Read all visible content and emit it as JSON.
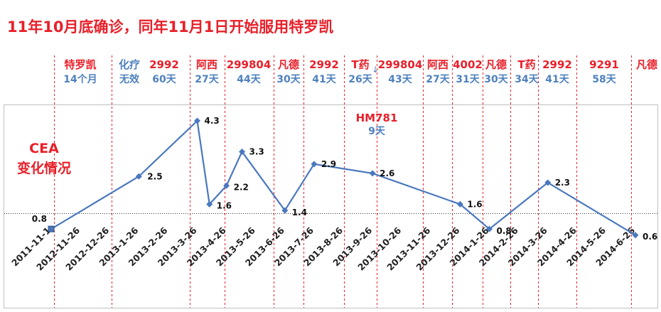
{
  "title": "11年10月底确诊，同年11月1日开始服用特罗凯",
  "side_label": [
    "CEA",
    "变化情况"
  ],
  "colors": {
    "title": "#e8202a",
    "red": "#e8202a",
    "blue": "#4f81bd",
    "line": "#4a78be"
  },
  "treatments": [
    {
      "drug": "特罗凯",
      "duration": "14个月",
      "drug_color": "red"
    },
    {
      "drug": "化疗",
      "duration": "无效",
      "drug_color": "blue"
    },
    {
      "drug": "2992",
      "duration": "60天",
      "drug_color": "red"
    },
    {
      "drug": "阿西",
      "duration": "27天",
      "drug_color": "red"
    },
    {
      "drug": "299804",
      "duration": "44天",
      "drug_color": "red"
    },
    {
      "drug": "凡德",
      "duration": "30天",
      "drug_color": "red"
    },
    {
      "drug": "2992",
      "duration": "41天",
      "drug_color": "red"
    },
    {
      "drug": "T药",
      "duration": "26天",
      "drug_color": "red"
    },
    {
      "drug": "299804",
      "duration": "43天",
      "drug_color": "red"
    },
    {
      "drug": "阿西",
      "duration": "27天",
      "drug_color": "red"
    },
    {
      "drug": "4002",
      "duration": "31天",
      "drug_color": "red"
    },
    {
      "drug": "凡德",
      "duration": "30天",
      "drug_color": "red"
    },
    {
      "drug": "T药",
      "duration": "34天",
      "drug_color": "red"
    },
    {
      "drug": "2992",
      "duration": "41天",
      "drug_color": "red"
    },
    {
      "drug": "9291",
      "duration": "58天",
      "drug_color": "red"
    },
    {
      "drug": "凡德",
      "duration": "",
      "drug_color": "red"
    }
  ],
  "annotation": {
    "drug": "HM781",
    "duration": "9天"
  },
  "chart_data": {
    "type": "line",
    "x_labels": [
      "2011-11-1",
      "2012-11-26",
      "2012-12-26",
      "2013-1-26",
      "2013-2-26",
      "2013-3-26",
      "2013-4-26",
      "2013-5-26",
      "2013-6-26",
      "2013-7-26",
      "2013-8-26",
      "2013-9-26",
      "2013-10-26",
      "2013-11-26",
      "2013-12-26",
      "2014-1-26",
      "2014-2-26",
      "2014-3-26",
      "2014-4-26",
      "2014-5-26",
      "2014-6-26"
    ],
    "points": [
      {
        "x": "2011-11-1",
        "y": 0.8,
        "label": "0.8"
      },
      {
        "x": "2013-1-26",
        "y": 2.5,
        "label": "2.5"
      },
      {
        "x": "2013-3-26",
        "y": 4.3,
        "label": "4.3"
      },
      {
        "x": "2013-4-8",
        "y": 1.6,
        "label": "1.6"
      },
      {
        "x": "2013-4-26",
        "y": 2.2,
        "label": "2.2"
      },
      {
        "x": "2013-5-12",
        "y": 3.3,
        "label": "3.3"
      },
      {
        "x": "2013-6-26",
        "y": 1.4,
        "label": "1.4"
      },
      {
        "x": "2013-7-26",
        "y": 2.9,
        "label": "2.9"
      },
      {
        "x": "2013-9-26",
        "y": 2.6,
        "label": "2.6"
      },
      {
        "x": "2013-12-26",
        "y": 1.6,
        "label": "1.6"
      },
      {
        "x": "2014-1-26",
        "y": 0.8,
        "label": "0.8"
      },
      {
        "x": "2014-3-26",
        "y": 2.3,
        "label": "2.3"
      },
      {
        "x": "2014-6-26",
        "y": 0.6,
        "label": "0.6"
      }
    ],
    "reference_line": 1.3,
    "grid": false
  }
}
